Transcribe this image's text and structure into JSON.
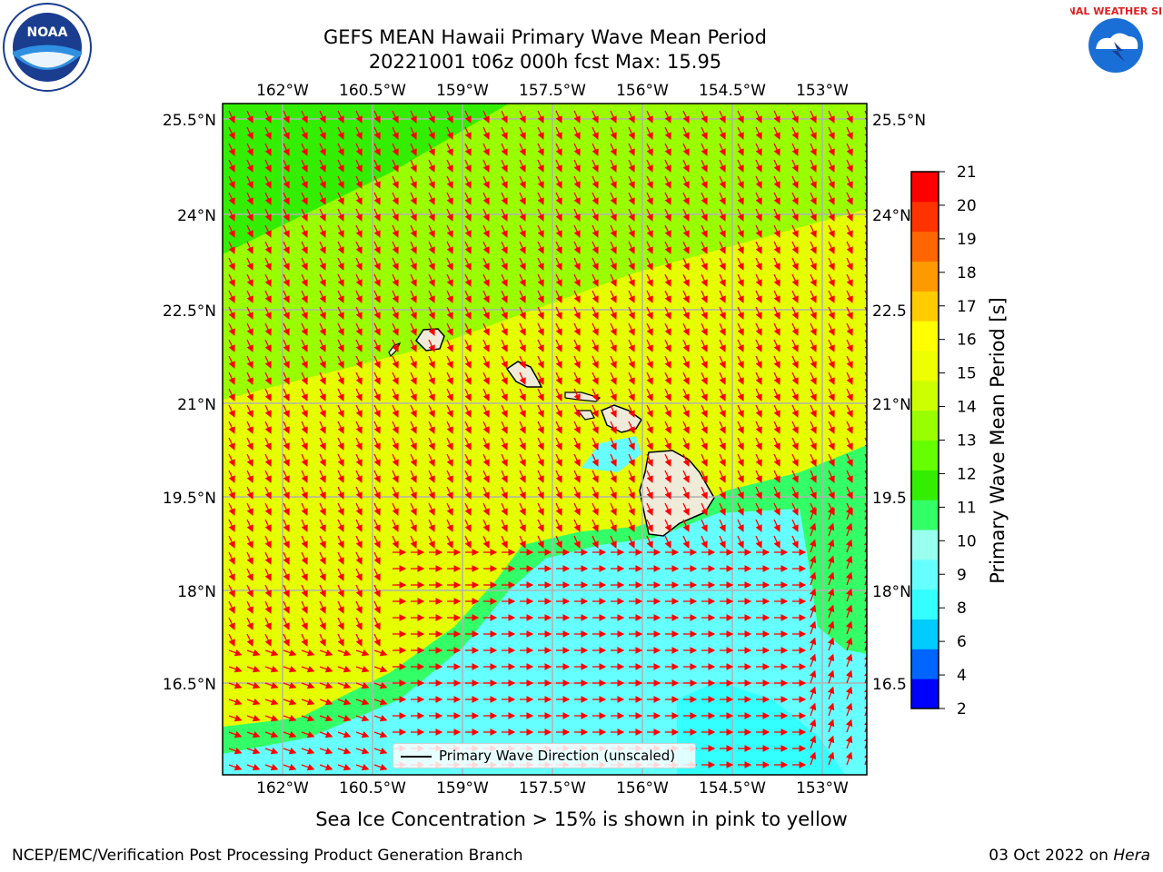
{
  "title": {
    "line1": "GEFS MEAN Hawaii Primary Wave Mean Period",
    "line2": "20221001 t06z 000h fcst   Max: 15.95"
  },
  "axes": {
    "lon_ticks": [
      "162°W",
      "160.5°W",
      "159°W",
      "157.5°W",
      "156°W",
      "154.5°W",
      "153°W"
    ],
    "lat_ticks_left": [
      "25.5°N",
      "24°N",
      "22.5°N",
      "21°N",
      "19.5°N",
      "18°N",
      "16.5°N"
    ],
    "lat_ticks_right": [
      "25.5°N",
      "24°N",
      "22.5",
      "21°N",
      "19.5",
      "18°N",
      "16.5"
    ]
  },
  "colorbar": {
    "label": "Primary Wave Mean Period [s]",
    "ticks": [
      "21",
      "20",
      "19",
      "18",
      "17",
      "16",
      "15",
      "14",
      "13",
      "12",
      "11",
      "10",
      "9",
      "8",
      "6",
      "4",
      "2"
    ],
    "colors": [
      "#0000ff",
      "#0066ff",
      "#00ccff",
      "#33ffff",
      "#66ffff",
      "#99ffee",
      "#33ff66",
      "#33ee00",
      "#66ff00",
      "#99ff00",
      "#ccff00",
      "#eeff00",
      "#ffff00",
      "#ffcc00",
      "#ff9900",
      "#ff6600",
      "#ff3300",
      "#ff0000"
    ]
  },
  "legend": {
    "label": "Primary Wave Direction (unscaled)"
  },
  "footer": {
    "caption": "Sea Ice Concentration > 15% is shown in pink to yellow",
    "left": "NCEP/EMC/Verification Post Processing Product Generation Branch",
    "right_date": "03 Oct 2022 on ",
    "right_machine": "Hera"
  },
  "logos": {
    "noaa": "NOAA",
    "nws": "NATIONAL WEATHER SERVICE"
  }
}
